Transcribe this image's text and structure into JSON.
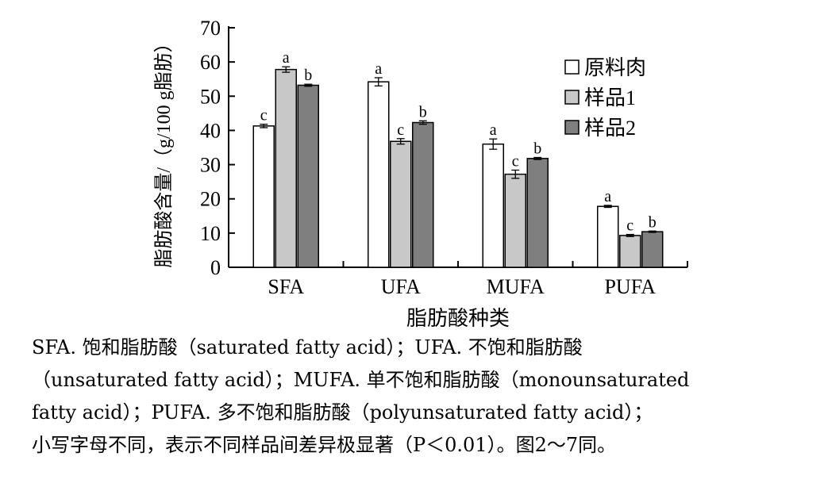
{
  "chart_data": {
    "type": "bar",
    "categories": [
      "SFA",
      "UFA",
      "MUFA",
      "PUFA"
    ],
    "series": [
      {
        "name": "原料肉",
        "color": "#ffffff",
        "values": [
          41.3,
          54.2,
          36.0,
          17.8
        ],
        "errors": [
          0.5,
          1.2,
          1.5,
          0.3
        ],
        "letters": [
          "c",
          "a",
          "a",
          "a"
        ]
      },
      {
        "name": "样品1",
        "color": "#c8c8c8",
        "values": [
          57.8,
          36.8,
          27.2,
          9.3
        ],
        "errors": [
          0.8,
          0.8,
          1.2,
          0.3
        ],
        "letters": [
          "a",
          "c",
          "c",
          "c"
        ]
      },
      {
        "name": "样品2",
        "color": "#7f7f7f",
        "values": [
          53.2,
          42.3,
          31.8,
          10.4
        ],
        "errors": [
          0.3,
          0.5,
          0.3,
          0.2
        ],
        "letters": [
          "b",
          "b",
          "b",
          "b"
        ]
      }
    ],
    "xlabel": "脂肪酸种类",
    "ylabel": "脂肪酸含量/（g/100 g脂肪）",
    "ylim": [
      0,
      70
    ],
    "yticks": [
      0,
      10,
      20,
      30,
      40,
      50,
      60,
      70
    ],
    "legend_position": "top-right",
    "grid": false
  },
  "caption": {
    "lines": [
      "SFA. 饱和脂肪酸（saturated fatty acid）；UFA. 不饱和脂肪酸",
      "（unsaturated fatty acid）；MUFA. 单不饱和脂肪酸（monounsaturated",
      "fatty acid）；PUFA. 多不饱和脂肪酸（polyunsaturated fatty acid）；",
      "小写字母不同，表示不同样品间差异极显著（P＜0.01）。图2～7同。"
    ]
  }
}
